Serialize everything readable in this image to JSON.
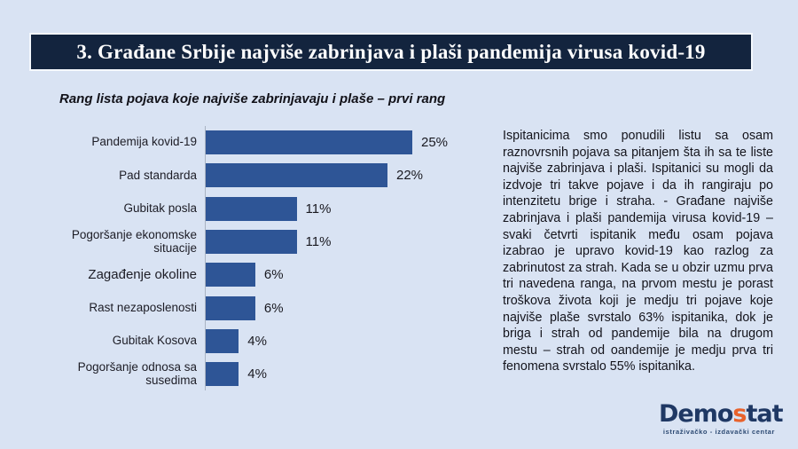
{
  "header": {
    "title": "3. Građane Srbije najviše zabrinjava i plaši pandemija virusa kovid-19"
  },
  "chart_data": {
    "type": "bar",
    "orientation": "horizontal",
    "title": "Rang lista pojava koje najviše zabrinjavaju i plaše – prvi rang",
    "categories": [
      "Pandemija kovid-19",
      "Pad standarda",
      "Gubitak posla",
      "Pogoršanje ekonomske situacije",
      "Zagađenje okoline",
      "Rast nezaposlenosti",
      "Gubitak Kosova",
      "Pogoršanje odnosa sa susedima"
    ],
    "values": [
      25,
      22,
      11,
      11,
      6,
      6,
      4,
      4
    ],
    "value_labels": [
      "25%",
      "22%",
      "11%",
      "11%",
      "6%",
      "6%",
      "4%",
      "4%"
    ],
    "xlabel": "",
    "ylabel": "",
    "xlim": [
      0,
      27
    ],
    "grid": false,
    "legend": false,
    "bar_color": "#2E5596"
  },
  "commentary": {
    "text": "Ispitanicima smo ponudili listu sa osam raznovrsnih pojava sa pitanjem šta ih sa te liste najviše zabrinjava i plaši. Ispitanici su mogli da izdvoje tri takve pojave i da ih rangiraju po intenzitetu brige i straha. - Građane najviše zabrinjava i plaši pandemija virusa kovid-19 – svaki četvrti ispitanik među osam pojava izabrao je upravo kovid-19 kao razlog za zabrinutost za strah. Kada se u obzir uzmu prva tri navedena ranga, na prvom mestu je porast troškova života koji je medju tri pojave koje najviše plaše svrstalo 63% ispitanika, dok je briga i strah od pandemije bila na drugom mestu – strah od oandemije je medju prva tri fenomena svrstalo 55% ispitanika."
  },
  "logo": {
    "part1": "Demo",
    "part2": "s",
    "part3": "tat",
    "tagline": "istraživačko - izdavački centar"
  },
  "colors": {
    "background": "#D9E3F3",
    "header_bg": "#13243E",
    "bar": "#2E5596",
    "axis_line": "#A9B3C2",
    "logo_navy": "#1F3864",
    "logo_orange": "#E8622C"
  }
}
